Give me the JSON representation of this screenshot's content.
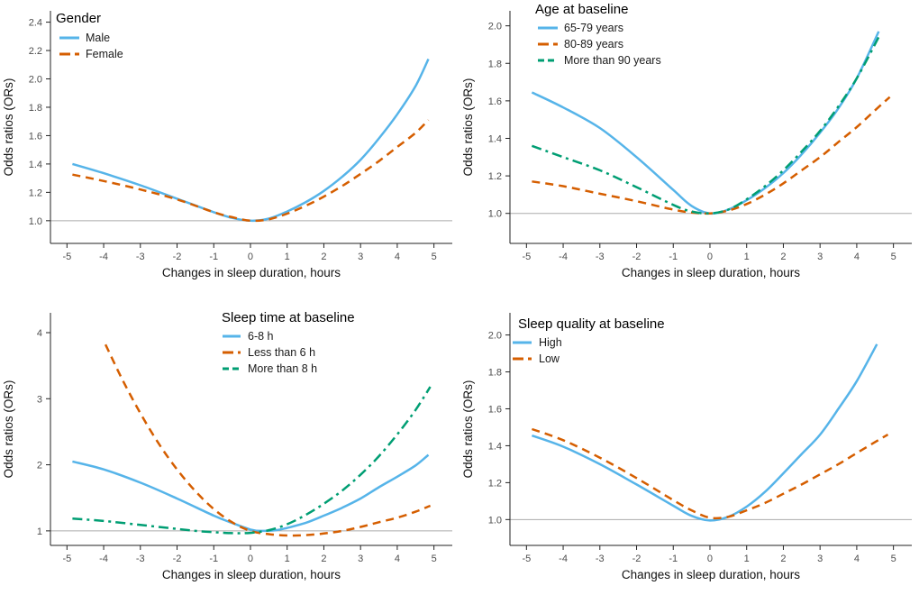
{
  "palette": {
    "blue": "#56B4E9",
    "orange": "#D55E00",
    "green": "#009E73",
    "ref_line_gray": "#ABABAB",
    "axis_color": "#222222",
    "tick_label_color": "#4d4d4d"
  },
  "chart_data": [
    {
      "type": "line",
      "title": "Gender",
      "xlabel": "Changes in sleep duration, hours",
      "ylabel": "Odds ratios (ORs)",
      "xlim": [
        -5.45,
        5.5
      ],
      "ylim": [
        0.84,
        2.48
      ],
      "xticks": [
        -5,
        -4,
        -3,
        -2,
        -1,
        0,
        1,
        2,
        3,
        4,
        5
      ],
      "yticks": [
        1.0,
        1.2,
        1.4,
        1.6,
        1.8,
        2.0,
        2.2,
        2.4
      ],
      "ytick_labels": [
        "1.0",
        "1.2",
        "1.4",
        "1.6",
        "1.8",
        "2.0",
        "2.2",
        "2.4"
      ],
      "ref_line": 1.0,
      "grid": false,
      "legend_position": "top-left-inside",
      "series": [
        {
          "name": "Male",
          "color": "#56B4E9",
          "dash": "solid",
          "points": [
            [
              -4.85,
              1.4
            ],
            [
              -4,
              1.335
            ],
            [
              -3,
              1.25
            ],
            [
              -2,
              1.155
            ],
            [
              -1,
              1.06
            ],
            [
              -0.5,
              1.02
            ],
            [
              0,
              1.0
            ],
            [
              0.5,
              1.015
            ],
            [
              1,
              1.065
            ],
            [
              1.5,
              1.13
            ],
            [
              2,
              1.21
            ],
            [
              2.5,
              1.31
            ],
            [
              3,
              1.43
            ],
            [
              3.5,
              1.58
            ],
            [
              4,
              1.75
            ],
            [
              4.5,
              1.95
            ],
            [
              4.85,
              2.14
            ]
          ]
        },
        {
          "name": "Female",
          "color": "#D55E00",
          "dash": "dashed",
          "points": [
            [
              -4.85,
              1.325
            ],
            [
              -4,
              1.28
            ],
            [
              -3,
              1.22
            ],
            [
              -2,
              1.15
            ],
            [
              -1,
              1.06
            ],
            [
              -0.5,
              1.025
            ],
            [
              0,
              1.0
            ],
            [
              0.5,
              1.01
            ],
            [
              1,
              1.05
            ],
            [
              1.5,
              1.105
            ],
            [
              2,
              1.17
            ],
            [
              2.5,
              1.245
            ],
            [
              3,
              1.33
            ],
            [
              3.5,
              1.42
            ],
            [
              4,
              1.52
            ],
            [
              4.5,
              1.62
            ],
            [
              4.85,
              1.71
            ]
          ]
        }
      ]
    },
    {
      "type": "line",
      "title": "Age at baseline",
      "xlabel": "Changes in sleep duration, hours",
      "ylabel": "Odds ratios (ORs)",
      "xlim": [
        -5.45,
        5.5
      ],
      "ylim": [
        0.84,
        2.08
      ],
      "xticks": [
        -5,
        -4,
        -3,
        -2,
        -1,
        0,
        1,
        2,
        3,
        4,
        5
      ],
      "yticks": [
        1.0,
        1.2,
        1.4,
        1.6,
        1.8,
        2.0
      ],
      "ytick_labels": [
        "1.0",
        "1.2",
        "1.4",
        "1.6",
        "1.8",
        "2.0"
      ],
      "ref_line": 1.0,
      "grid": false,
      "legend_position": "top-left-inside",
      "series": [
        {
          "name": "65-79 years",
          "color": "#56B4E9",
          "dash": "solid",
          "points": [
            [
              -4.85,
              1.645
            ],
            [
              -4,
              1.565
            ],
            [
              -3,
              1.455
            ],
            [
              -2,
              1.3
            ],
            [
              -1,
              1.125
            ],
            [
              -0.5,
              1.04
            ],
            [
              0,
              1.0
            ],
            [
              0.5,
              1.02
            ],
            [
              1,
              1.07
            ],
            [
              1.5,
              1.135
            ],
            [
              2,
              1.215
            ],
            [
              2.5,
              1.315
            ],
            [
              3,
              1.43
            ],
            [
              3.5,
              1.56
            ],
            [
              4,
              1.72
            ],
            [
              4.6,
              1.97
            ]
          ]
        },
        {
          "name": "80-89 years",
          "color": "#D55E00",
          "dash": "dashed",
          "points": [
            [
              -4.85,
              1.17
            ],
            [
              -4,
              1.145
            ],
            [
              -3,
              1.105
            ],
            [
              -2,
              1.065
            ],
            [
              -1,
              1.02
            ],
            [
              -0.5,
              1.005
            ],
            [
              0,
              1.0
            ],
            [
              0.5,
              1.015
            ],
            [
              1,
              1.05
            ],
            [
              1.5,
              1.1
            ],
            [
              2,
              1.16
            ],
            [
              2.5,
              1.23
            ],
            [
              3,
              1.3
            ],
            [
              3.5,
              1.38
            ],
            [
              4,
              1.46
            ],
            [
              4.5,
              1.55
            ],
            [
              4.9,
              1.62
            ]
          ]
        },
        {
          "name": "More than 90 years",
          "color": "#009E73",
          "dash": "dashdot",
          "points": [
            [
              -4.85,
              1.36
            ],
            [
              -4,
              1.3
            ],
            [
              -3,
              1.23
            ],
            [
              -2,
              1.14
            ],
            [
              -1,
              1.045
            ],
            [
              -0.5,
              1.01
            ],
            [
              0,
              1.0
            ],
            [
              0.5,
              1.02
            ],
            [
              1,
              1.075
            ],
            [
              1.5,
              1.145
            ],
            [
              2,
              1.23
            ],
            [
              2.5,
              1.33
            ],
            [
              3,
              1.44
            ],
            [
              3.5,
              1.57
            ],
            [
              4,
              1.72
            ],
            [
              4.6,
              1.94
            ]
          ]
        }
      ]
    },
    {
      "type": "line",
      "title": "Sleep time at baseline",
      "xlabel": "Changes in sleep duration, hours",
      "ylabel": "Odds ratios (ORs)",
      "xlim": [
        -5.45,
        5.5
      ],
      "ylim": [
        0.78,
        4.3
      ],
      "xticks": [
        -5,
        -4,
        -3,
        -2,
        -1,
        0,
        1,
        2,
        3,
        4,
        5
      ],
      "yticks": [
        1,
        2,
        3,
        4
      ],
      "ytick_labels": [
        "1",
        "2",
        "3",
        "4"
      ],
      "ref_line": 1.0,
      "grid": false,
      "legend_position": "top-center-inside",
      "series": [
        {
          "name": "6-8 h",
          "color": "#56B4E9",
          "dash": "solid",
          "points": [
            [
              -4.85,
              2.05
            ],
            [
              -4,
              1.93
            ],
            [
              -3,
              1.73
            ],
            [
              -2,
              1.49
            ],
            [
              -1,
              1.23
            ],
            [
              -0.5,
              1.12
            ],
            [
              0,
              1.02
            ],
            [
              0.3,
              1.0
            ],
            [
              0.7,
              1.01
            ],
            [
              1,
              1.045
            ],
            [
              1.5,
              1.12
            ],
            [
              2,
              1.23
            ],
            [
              2.5,
              1.35
            ],
            [
              3,
              1.49
            ],
            [
              3.5,
              1.66
            ],
            [
              4,
              1.82
            ],
            [
              4.5,
              1.99
            ],
            [
              4.85,
              2.15
            ]
          ]
        },
        {
          "name": "Less than 6 h",
          "color": "#D55E00",
          "dash": "dashed",
          "points": [
            [
              -3.95,
              3.82
            ],
            [
              -3.5,
              3.3
            ],
            [
              -3,
              2.78
            ],
            [
              -2.5,
              2.32
            ],
            [
              -2,
              1.93
            ],
            [
              -1.5,
              1.6
            ],
            [
              -1,
              1.33
            ],
            [
              -0.5,
              1.13
            ],
            [
              0,
              1.0
            ],
            [
              0.5,
              0.95
            ],
            [
              1,
              0.93
            ],
            [
              1.5,
              0.935
            ],
            [
              2,
              0.96
            ],
            [
              2.5,
              1.0
            ],
            [
              3,
              1.06
            ],
            [
              3.5,
              1.13
            ],
            [
              4,
              1.2
            ],
            [
              4.5,
              1.29
            ],
            [
              4.9,
              1.38
            ]
          ]
        },
        {
          "name": "More than 8 h",
          "color": "#009E73",
          "dash": "dashdot",
          "points": [
            [
              -4.85,
              1.185
            ],
            [
              -4,
              1.15
            ],
            [
              -3,
              1.09
            ],
            [
              -2,
              1.03
            ],
            [
              -1.5,
              1.0
            ],
            [
              -1,
              0.98
            ],
            [
              -0.5,
              0.965
            ],
            [
              0,
              0.97
            ],
            [
              0.5,
              1.01
            ],
            [
              1,
              1.1
            ],
            [
              1.5,
              1.24
            ],
            [
              2,
              1.41
            ],
            [
              2.5,
              1.61
            ],
            [
              3,
              1.85
            ],
            [
              3.5,
              2.13
            ],
            [
              4,
              2.46
            ],
            [
              4.5,
              2.83
            ],
            [
              4.9,
              3.18
            ]
          ]
        }
      ]
    },
    {
      "type": "line",
      "title": "Sleep quality at baseline",
      "xlabel": "Changes in sleep duration, hours",
      "ylabel": "Odds ratios (ORs)",
      "xlim": [
        -5.45,
        5.5
      ],
      "ylim": [
        0.86,
        2.12
      ],
      "xticks": [
        -5,
        -4,
        -3,
        -2,
        -1,
        0,
        1,
        2,
        3,
        4,
        5
      ],
      "yticks": [
        1.0,
        1.2,
        1.4,
        1.6,
        1.8,
        2.0
      ],
      "ytick_labels": [
        "1.0",
        "1.2",
        "1.4",
        "1.6",
        "1.8",
        "2.0"
      ],
      "ref_line": 1.0,
      "grid": false,
      "legend_position": "top-left-inside",
      "series": [
        {
          "name": "High",
          "color": "#56B4E9",
          "dash": "solid",
          "points": [
            [
              -4.85,
              1.455
            ],
            [
              -4,
              1.395
            ],
            [
              -3,
              1.3
            ],
            [
              -2,
              1.19
            ],
            [
              -1,
              1.075
            ],
            [
              -0.5,
              1.02
            ],
            [
              0,
              0.995
            ],
            [
              0.5,
              1.015
            ],
            [
              1,
              1.07
            ],
            [
              1.5,
              1.15
            ],
            [
              2,
              1.25
            ],
            [
              2.5,
              1.355
            ],
            [
              3,
              1.46
            ],
            [
              3.5,
              1.6
            ],
            [
              4,
              1.75
            ],
            [
              4.55,
              1.95
            ]
          ]
        },
        {
          "name": "Low",
          "color": "#D55E00",
          "dash": "dashed",
          "points": [
            [
              -4.85,
              1.49
            ],
            [
              -4,
              1.43
            ],
            [
              -3,
              1.335
            ],
            [
              -2,
              1.225
            ],
            [
              -1,
              1.105
            ],
            [
              -0.5,
              1.05
            ],
            [
              0,
              1.01
            ],
            [
              0.5,
              1.015
            ],
            [
              1,
              1.05
            ],
            [
              1.5,
              1.09
            ],
            [
              2,
              1.14
            ],
            [
              2.5,
              1.19
            ],
            [
              3,
              1.245
            ],
            [
              3.5,
              1.3
            ],
            [
              4,
              1.36
            ],
            [
              4.5,
              1.42
            ],
            [
              4.85,
              1.46
            ]
          ]
        }
      ]
    }
  ]
}
